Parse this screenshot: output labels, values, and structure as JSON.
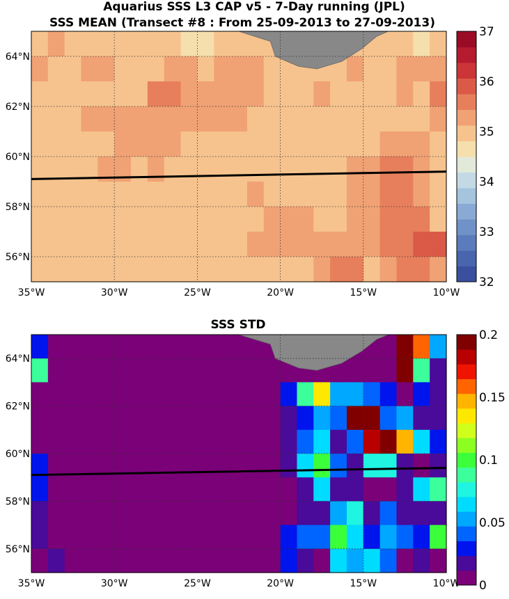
{
  "colors": {
    "land": "#888888",
    "transect_line": "#000000",
    "mean_colormap": [
      "#3a4f9e",
      "#4865ae",
      "#5b7cbc",
      "#6f93c8",
      "#89aad4",
      "#a5c4dd",
      "#c3dae5",
      "#e2e9d9",
      "#f5dfac",
      "#f6c38e",
      "#f0a274",
      "#e77f5c",
      "#db5a47",
      "#cc3537",
      "#b51a2e",
      "#9a0b26"
    ],
    "std_colormap": [
      "#7a0178",
      "#4a0a9a",
      "#0014ee",
      "#0064ff",
      "#00a8ff",
      "#00dcff",
      "#1ff5e0",
      "#3cff9c",
      "#3cff3c",
      "#8cff20",
      "#d0ff1c",
      "#ffe800",
      "#ffb400",
      "#ff6400",
      "#f01400",
      "#b80000",
      "#800000"
    ]
  },
  "chart_data": [
    {
      "type": "heatmap",
      "title": "Aquarius SSS L3 CAP v5 - 7-Day running (JPL)",
      "subtitle": "SSS MEAN (Transect #8 : From 25-09-2013 to 27-09-2013)",
      "xlim": [
        -35,
        -10
      ],
      "ylim": [
        55,
        65
      ],
      "x_tick_values": [
        -35,
        -30,
        -25,
        -20,
        -15,
        -10
      ],
      "x_tick_labels": [
        "35°W",
        "30°W",
        "25°W",
        "20°W",
        "15°W",
        "10°W"
      ],
      "y_tick_values": [
        56,
        58,
        60,
        62,
        64
      ],
      "y_tick_labels": [
        "56°N",
        "58°N",
        "60°N",
        "62°N",
        "64°N"
      ],
      "colorbar": {
        "range": [
          32,
          37
        ],
        "ticks": [
          "32",
          "33",
          "34",
          "35",
          "36",
          "37"
        ]
      },
      "lon_edges": [
        -35,
        -34,
        -33,
        -32,
        -31,
        -30,
        -29,
        -28,
        -27,
        -26,
        -25,
        -24,
        -23,
        -22,
        -21,
        -20,
        -19,
        -18,
        -17,
        -16,
        -15,
        -14,
        -13,
        -12,
        -11,
        -10
      ],
      "lat_edges": [
        55,
        56,
        57,
        58,
        59,
        60,
        61,
        62,
        63,
        64,
        65
      ],
      "values_north_to_south": [
        [
          35.1,
          35.3,
          35.1,
          35.1,
          35.1,
          35.1,
          35.1,
          35.1,
          35.1,
          34.7,
          34.8,
          35.1,
          35.1,
          35.1,
          35.1,
          35.1,
          35.1,
          35.1,
          35.1,
          35.1,
          35.1,
          35.1,
          35.1,
          34.5,
          35.1
        ],
        [
          35.4,
          35.1,
          35.1,
          35.4,
          35.4,
          35.1,
          35.1,
          35.1,
          35.4,
          35.4,
          35.1,
          35.4,
          35.4,
          35.4,
          35.1,
          35.1,
          35.1,
          35.1,
          35.1,
          35.4,
          35.1,
          35.1,
          35.4,
          35.4,
          35.4
        ],
        [
          35.1,
          35.1,
          35.1,
          35.1,
          35.1,
          35.1,
          35.1,
          35.7,
          35.7,
          35.4,
          35.4,
          35.4,
          35.4,
          35.4,
          35.1,
          34.9,
          35.1,
          35.4,
          35.1,
          35.1,
          35.1,
          35.1,
          35.4,
          35.1,
          35.7
        ],
        [
          35.1,
          35.1,
          35.1,
          35.4,
          35.4,
          35.4,
          35.4,
          35.4,
          35.4,
          35.4,
          35.4,
          35.4,
          35.4,
          35.1,
          35.1,
          35.1,
          35.1,
          35.1,
          35.1,
          35.1,
          35.1,
          35.1,
          35.1,
          35.1,
          35.4
        ],
        [
          35.1,
          35.1,
          35.1,
          35.1,
          35.1,
          35.4,
          35.4,
          35.4,
          35.4,
          35.1,
          35.1,
          35.1,
          35.1,
          35.1,
          35.1,
          35.1,
          35.1,
          35.1,
          34.9,
          35.1,
          35.1,
          35.4,
          35.4,
          35.4,
          35.1
        ],
        [
          34.9,
          35.1,
          35.1,
          34.9,
          35.4,
          35.4,
          35.1,
          35.4,
          35.1,
          35.1,
          35.1,
          35.1,
          35.1,
          35.1,
          35.1,
          35.1,
          35.1,
          35.1,
          35.1,
          35.4,
          35.4,
          35.7,
          35.7,
          35.4,
          35.1
        ],
        [
          35.1,
          35.1,
          35.1,
          35.1,
          35.1,
          35.1,
          35.1,
          35.1,
          35.1,
          35.1,
          35.1,
          35.1,
          35.1,
          35.4,
          35.1,
          35.1,
          35.1,
          35.1,
          35.1,
          35.4,
          35.4,
          35.7,
          35.7,
          35.4,
          35.1
        ],
        [
          35.1,
          35.1,
          34.9,
          34.9,
          35.1,
          35.1,
          35.1,
          35.1,
          35.1,
          35.1,
          35.1,
          35.1,
          35.1,
          35.1,
          35.4,
          35.4,
          35.4,
          35.1,
          35.1,
          35.4,
          35.4,
          35.7,
          35.7,
          35.7,
          35.1
        ],
        [
          35.1,
          35.1,
          35.1,
          35.1,
          35.1,
          35.1,
          35.1,
          35.1,
          35.1,
          35.1,
          35.1,
          35.1,
          35.1,
          35.4,
          35.4,
          35.4,
          35.4,
          35.4,
          35.4,
          35.4,
          35.4,
          35.7,
          35.7,
          36.0,
          36.0
        ],
        [
          35.1,
          35.1,
          34.9,
          34.9,
          34.9,
          35.1,
          35.1,
          35.1,
          35.1,
          35.1,
          35.1,
          35.1,
          35.1,
          35.1,
          35.1,
          35.1,
          35.1,
          35.4,
          35.7,
          35.7,
          35.1,
          35.4,
          35.7,
          35.7,
          35.4
        ]
      ],
      "land": true,
      "transect": {
        "lon": [
          -35,
          -10
        ],
        "lat": [
          59.1,
          59.4
        ]
      }
    },
    {
      "type": "heatmap",
      "title": "SSS STD",
      "xlim": [
        -35,
        -10
      ],
      "ylim": [
        55,
        65
      ],
      "x_tick_values": [
        -35,
        -30,
        -25,
        -20,
        -15,
        -10
      ],
      "x_tick_labels": [
        "35°W",
        "30°W",
        "25°W",
        "20°W",
        "15°W",
        "10°W"
      ],
      "y_tick_values": [
        56,
        58,
        60,
        62,
        64
      ],
      "y_tick_labels": [
        "56°N",
        "58°N",
        "60°N",
        "62°N",
        "64°N"
      ],
      "colorbar": {
        "range": [
          0,
          0.2
        ],
        "ticks": [
          "0",
          "0.05",
          "0.1",
          "0.15",
          "0.2"
        ]
      },
      "lon_edges": [
        -35,
        -34,
        -33,
        -32,
        -31,
        -30,
        -29,
        -28,
        -27,
        -26,
        -25,
        -24,
        -23,
        -22,
        -21,
        -20,
        -19,
        -18,
        -17,
        -16,
        -15,
        -14,
        -13,
        -12,
        -11,
        -10
      ],
      "lat_edges": [
        55,
        56,
        57,
        58,
        59,
        60,
        61,
        62,
        63,
        64,
        65
      ],
      "values_north_to_south": [
        [
          0.035,
          0.005,
          0.005,
          0.005,
          0.005,
          0.005,
          0.005,
          0.005,
          0.005,
          0.005,
          0.005,
          0.005,
          0.005,
          0.005,
          0.005,
          0.005,
          0.005,
          0.005,
          0.005,
          0.005,
          0.005,
          0.005,
          0.19,
          0.16,
          0.05
        ],
        [
          0.09,
          0.005,
          0.005,
          0.005,
          0.005,
          0.005,
          0.005,
          0.005,
          0.005,
          0.005,
          0.005,
          0.005,
          0.005,
          0.005,
          0.005,
          0.005,
          0.005,
          0.005,
          0.005,
          0.005,
          0.005,
          0.005,
          0.2,
          0.09,
          0.02
        ],
        [
          0.005,
          0.005,
          0.005,
          0.005,
          0.005,
          0.005,
          0.005,
          0.005,
          0.005,
          0.005,
          0.005,
          0.005,
          0.005,
          0.005,
          0.005,
          0.03,
          0.09,
          0.13,
          0.05,
          0.05,
          0.04,
          0.035,
          0.01,
          0.025,
          0.02
        ],
        [
          0.005,
          0.005,
          0.005,
          0.005,
          0.005,
          0.005,
          0.005,
          0.005,
          0.005,
          0.005,
          0.005,
          0.005,
          0.005,
          0.005,
          0.005,
          0.02,
          0.035,
          0.05,
          0.04,
          0.19,
          0.19,
          0.04,
          0.05,
          0.02,
          0.02
        ],
        [
          0.005,
          0.005,
          0.005,
          0.005,
          0.005,
          0.005,
          0.005,
          0.005,
          0.005,
          0.005,
          0.005,
          0.005,
          0.005,
          0.005,
          0.005,
          0.015,
          0.04,
          0.07,
          0.015,
          0.045,
          0.18,
          0.195,
          0.15,
          0.07,
          0.03
        ],
        [
          0.025,
          0.005,
          0.005,
          0.005,
          0.005,
          0.005,
          0.005,
          0.005,
          0.005,
          0.005,
          0.005,
          0.005,
          0.005,
          0.005,
          0.005,
          0.015,
          0.07,
          0.1,
          0.04,
          0.015,
          0.08,
          0.08,
          0.015,
          0.01,
          0.02
        ],
        [
          0.035,
          0.005,
          0.005,
          0.005,
          0.005,
          0.005,
          0.005,
          0.005,
          0.005,
          0.005,
          0.005,
          0.005,
          0.005,
          0.005,
          0.005,
          0.01,
          0.015,
          0.06,
          0.015,
          0.015,
          0.005,
          0.01,
          0.02,
          0.065,
          0.09
        ],
        [
          0.015,
          0.005,
          0.005,
          0.005,
          0.005,
          0.005,
          0.005,
          0.005,
          0.005,
          0.005,
          0.005,
          0.005,
          0.005,
          0.005,
          0.005,
          0.01,
          0.015,
          0.015,
          0.05,
          0.08,
          0.015,
          0.04,
          0.015,
          0.02,
          0.015
        ],
        [
          0.015,
          0.005,
          0.005,
          0.005,
          0.005,
          0.005,
          0.005,
          0.005,
          0.005,
          0.005,
          0.005,
          0.005,
          0.005,
          0.005,
          0.005,
          0.03,
          0.04,
          0.04,
          0.1,
          0.07,
          0.035,
          0.05,
          0.04,
          0.025,
          0.095
        ],
        [
          0.01,
          0.02,
          0.005,
          0.005,
          0.005,
          0.005,
          0.005,
          0.005,
          0.005,
          0.005,
          0.005,
          0.005,
          0.005,
          0.005,
          0.005,
          0.025,
          0.015,
          0.005,
          0.065,
          0.05,
          0.06,
          0.045,
          0.01,
          0.015,
          0.005
        ]
      ],
      "land": true,
      "transect": {
        "lon": [
          -35,
          -10
        ],
        "lat": [
          59.1,
          59.4
        ]
      }
    }
  ]
}
